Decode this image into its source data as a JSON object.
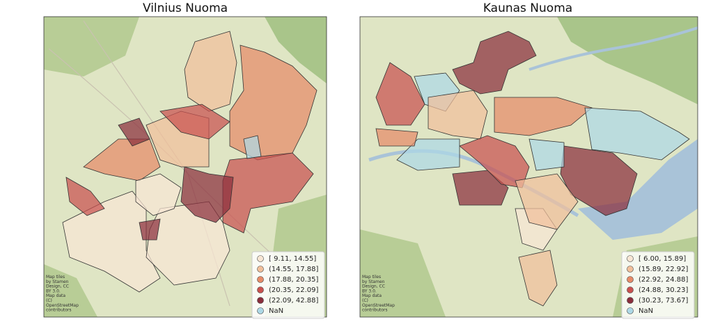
{
  "maps": [
    {
      "title": "Vilnius Nuoma",
      "legend": [
        {
          "label": "[ 9.11, 14.55]",
          "color": "#f8e6d4"
        },
        {
          "label": "(14.55, 17.88]",
          "color": "#f1bf9b"
        },
        {
          "label": "(17.88, 20.35]",
          "color": "#e68a68"
        },
        {
          "label": "(20.35, 22.09]",
          "color": "#c9514f"
        },
        {
          "label": "(22.09, 42.88]",
          "color": "#8a2e3c"
        },
        {
          "label": "NaN",
          "color": "#add8e6"
        }
      ],
      "attribution": [
        "Map tiles",
        "by Stamen",
        "Design, CC",
        "BY 3.0.",
        "Map data",
        "(C)",
        "OpenStreetMap",
        "contributors"
      ]
    },
    {
      "title": "Kaunas Nuoma",
      "legend": [
        {
          "label": "[ 6.00, 15.89]",
          "color": "#f8e6d4"
        },
        {
          "label": "(15.89, 22.92]",
          "color": "#f1bf9b"
        },
        {
          "label": "(22.92, 24.88]",
          "color": "#e68a68"
        },
        {
          "label": "(24.88, 30.23]",
          "color": "#c9514f"
        },
        {
          "label": "(30.23, 73.67]",
          "color": "#8a2e3c"
        },
        {
          "label": "NaN",
          "color": "#add8e6"
        }
      ],
      "attribution": [
        "Map tiles",
        "by Stamen",
        "Design, CC",
        "BY 3.0.",
        "Map data",
        "(C)",
        "OpenStreetMap",
        "contributors"
      ]
    }
  ]
}
